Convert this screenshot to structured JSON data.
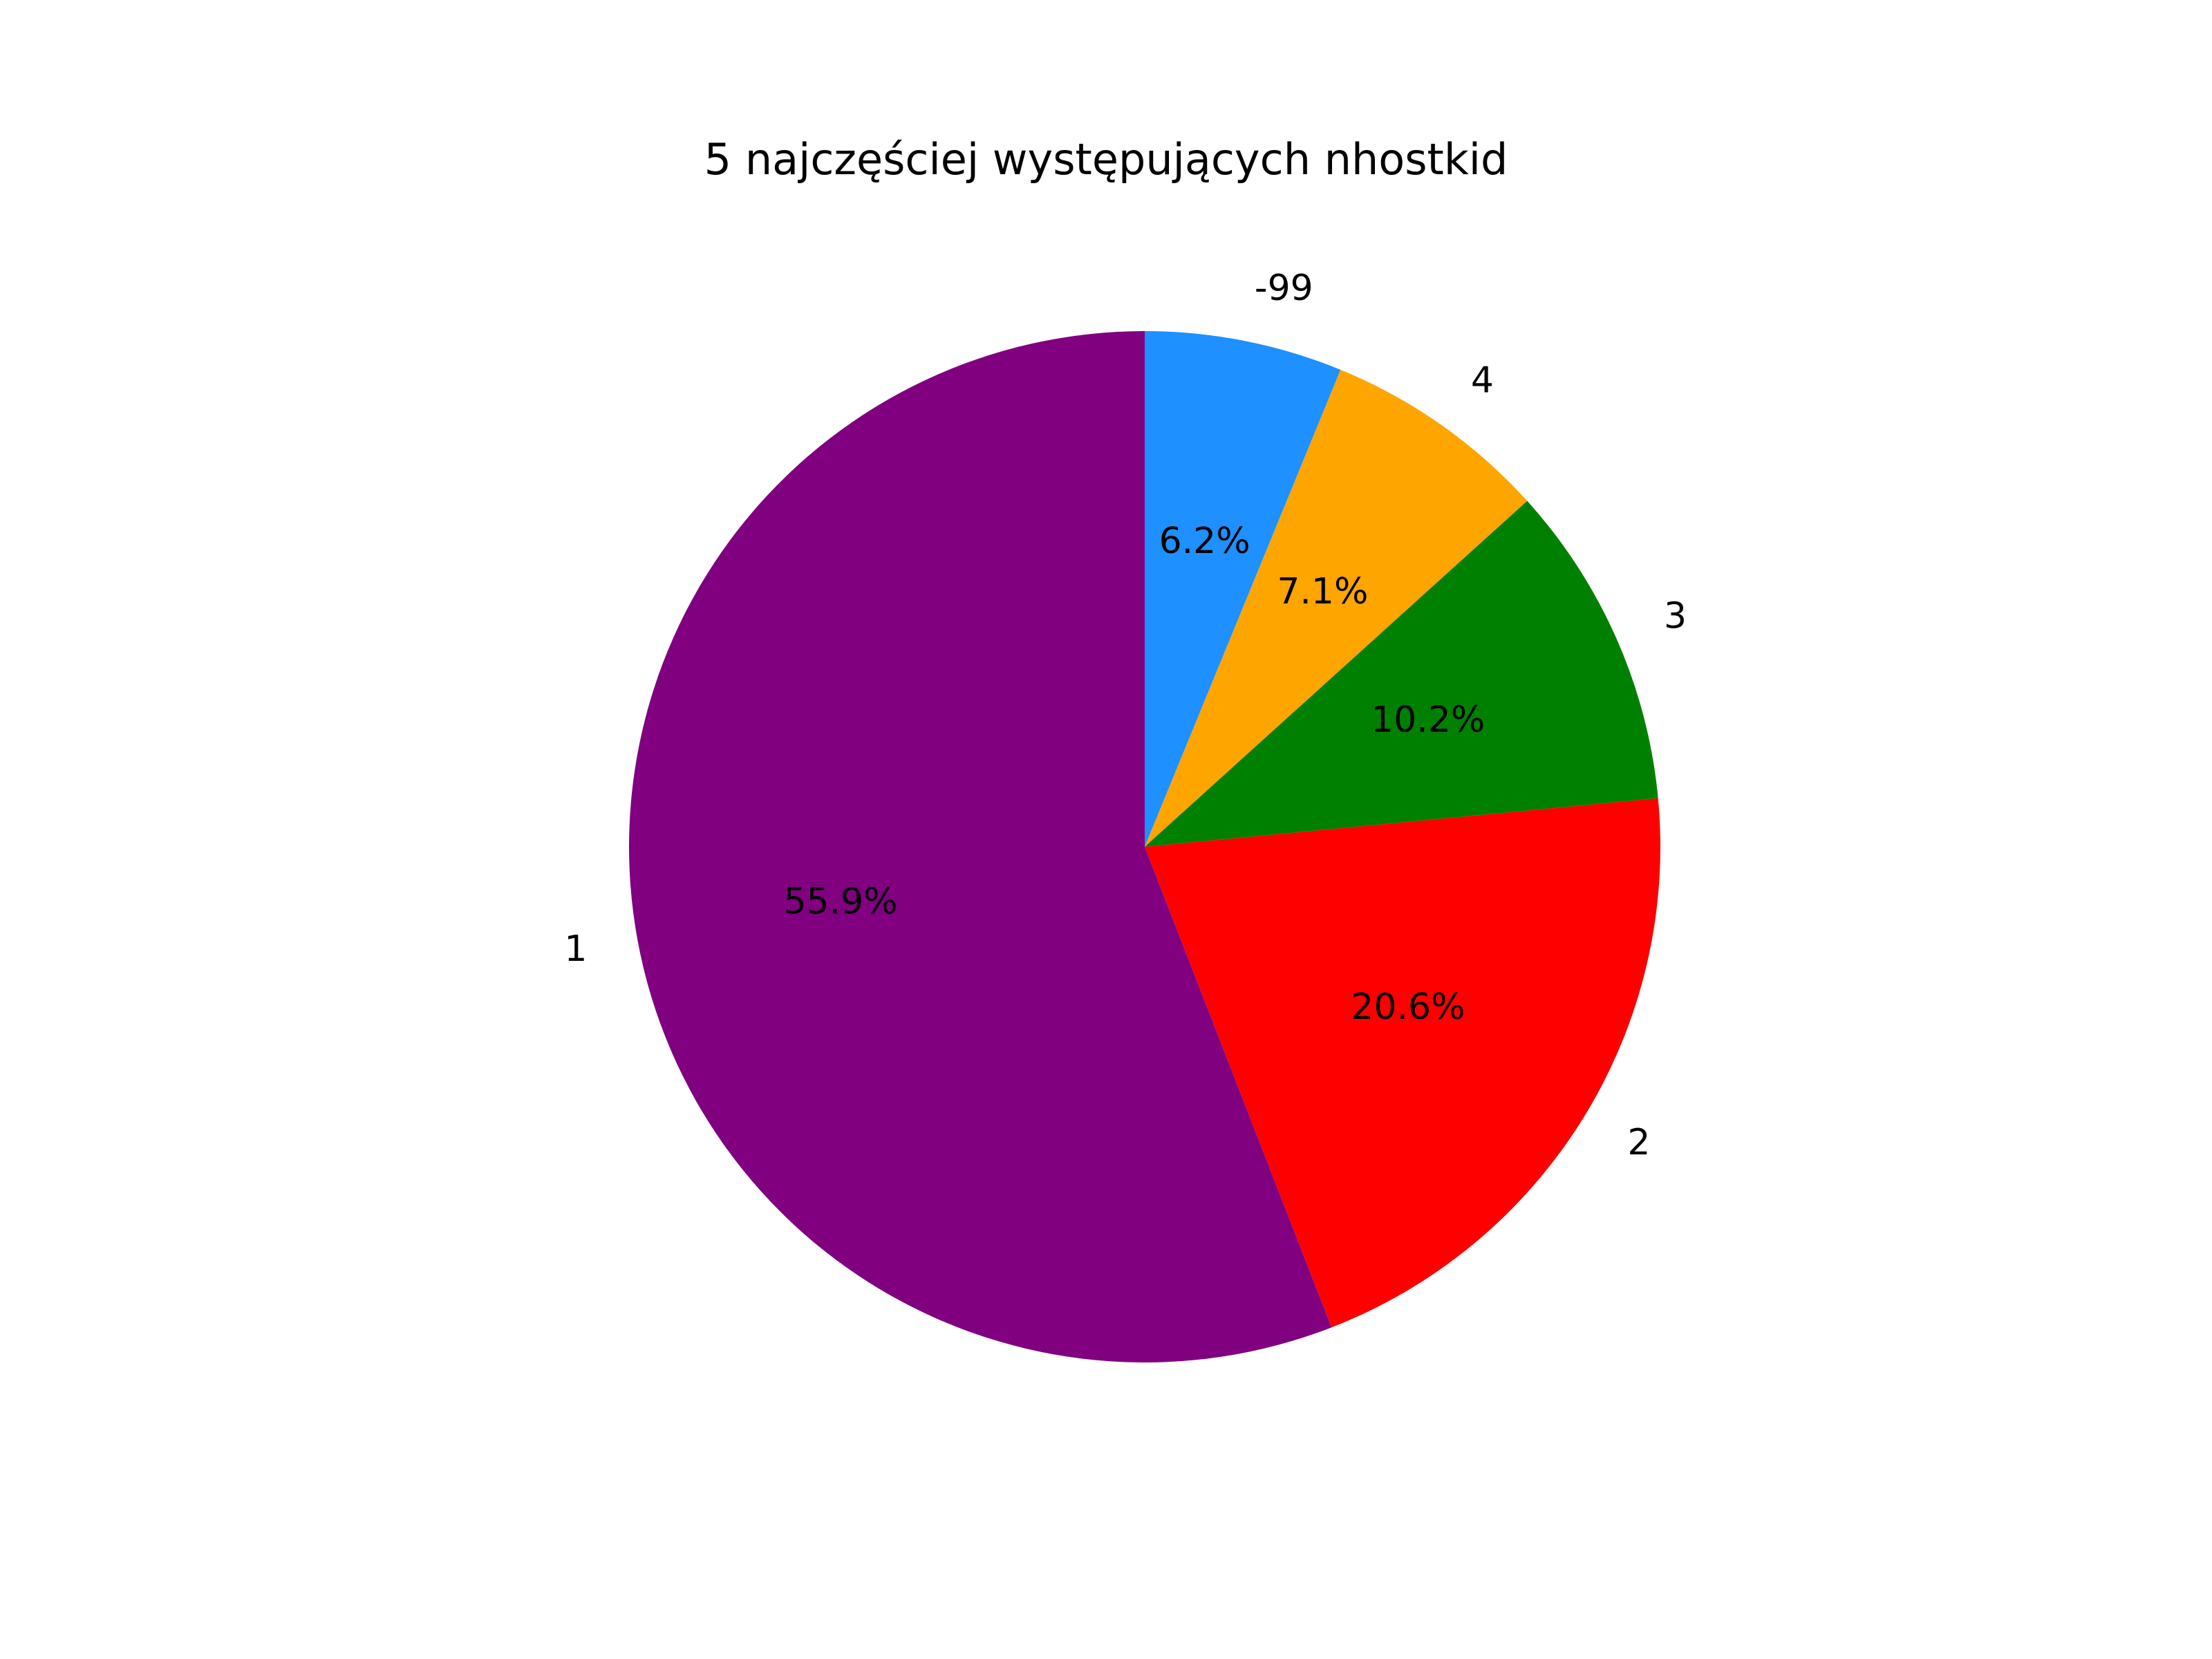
{
  "chart_data": {
    "type": "pie",
    "title": "5 najczęściej występujących nhostkid",
    "start_angle_deg": 90,
    "direction": "clockwise",
    "slices": [
      {
        "label": "-99",
        "value": 6.2,
        "pct_label": "6.2%",
        "color": "#1e90ff"
      },
      {
        "label": "4",
        "value": 7.1,
        "pct_label": "7.1%",
        "color": "#ffa500"
      },
      {
        "label": "3",
        "value": 10.2,
        "pct_label": "10.2%",
        "color": "#008000"
      },
      {
        "label": "2",
        "value": 20.6,
        "pct_label": "20.6%",
        "color": "#ff0000"
      },
      {
        "label": "1",
        "value": 55.9,
        "pct_label": "55.9%",
        "color": "#800080"
      }
    ]
  }
}
